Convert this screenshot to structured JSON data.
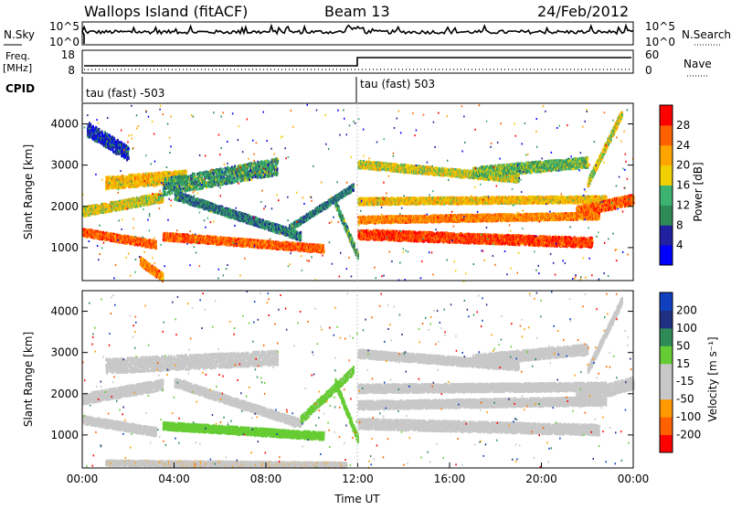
{
  "header": {
    "station": "Wallops Island (fitACF)",
    "beam": "Beam 13",
    "date": "24/Feb/2012"
  },
  "strip_panel": {
    "left_label": "N.Sky",
    "left_ticks": [
      "10^5",
      "10^0"
    ],
    "right_label": "N.Search",
    "right_ticks": [
      "10^5",
      "10^0"
    ]
  },
  "freq_panel": {
    "left_label_line1": "Freq.",
    "left_label_line2": "[MHz]",
    "left_ticks": [
      "18",
      "8"
    ],
    "right_label": "Nave",
    "right_ticks": [
      "60",
      "0"
    ]
  },
  "cpid": {
    "label": "CPID",
    "segments": [
      {
        "text": "tau (fast) -503",
        "start_hour": 0
      },
      {
        "text": "tau (fast) 503",
        "start_hour": 12
      }
    ]
  },
  "colors": {
    "power": [
      "#0000ff",
      "#2020a0",
      "#2e8b57",
      "#3cb371",
      "#f0d000",
      "#ffa500",
      "#ff6000",
      "#ff0000"
    ],
    "velocity": [
      "#ff0000",
      "#ff6000",
      "#ff9900",
      "#c8c8c8",
      "#c8c8c8",
      "#66cc33",
      "#2e8b57",
      "#203080",
      "#1040c0"
    ]
  },
  "chart_data": [
    {
      "type": "heatmap",
      "name": "power",
      "ylabel": "Slant Range [km]",
      "ylim": [
        200,
        4500
      ],
      "xlim": [
        0,
        24
      ],
      "yticks": [
        1000,
        2000,
        3000,
        4000
      ],
      "colorbar": {
        "label": "Power [dB]",
        "ticks": [
          4,
          8,
          12,
          16,
          20,
          24,
          28
        ],
        "range": [
          0,
          32
        ]
      },
      "bands": [
        {
          "t0": 0.0,
          "t1": 3.2,
          "r0": 1400,
          "r1": 1100,
          "w": 180,
          "value": 26
        },
        {
          "t0": 0.0,
          "t1": 3.5,
          "r0": 1900,
          "r1": 2250,
          "w": 220,
          "value": 18
        },
        {
          "t0": 1.0,
          "t1": 4.5,
          "r0": 2600,
          "r1": 2750,
          "w": 300,
          "value": 20
        },
        {
          "t0": 3.5,
          "t1": 8.5,
          "r0": 2500,
          "r1": 3000,
          "w": 400,
          "value": 12
        },
        {
          "t0": 3.5,
          "t1": 10.5,
          "r0": 1300,
          "r1": 1000,
          "w": 180,
          "value": 26
        },
        {
          "t0": 4.0,
          "t1": 9.5,
          "r0": 2300,
          "r1": 1300,
          "w": 200,
          "value": 10
        },
        {
          "t0": 2.5,
          "t1": 3.5,
          "r0": 700,
          "r1": 300,
          "w": 200,
          "value": 24
        },
        {
          "t0": 9.0,
          "t1": 11.8,
          "r0": 1500,
          "r1": 2500,
          "w": 150,
          "value": 10
        },
        {
          "t0": 11.0,
          "t1": 12.0,
          "r0": 2100,
          "r1": 800,
          "w": 180,
          "value": 12
        },
        {
          "t0": 12.0,
          "t1": 22.2,
          "r0": 1350,
          "r1": 1150,
          "w": 230,
          "value": 28
        },
        {
          "t0": 12.0,
          "t1": 22.5,
          "r0": 1700,
          "r1": 1800,
          "w": 160,
          "value": 24
        },
        {
          "t0": 12.0,
          "t1": 22.8,
          "r0": 2150,
          "r1": 2200,
          "w": 160,
          "value": 20
        },
        {
          "t0": 12.0,
          "t1": 19.0,
          "r0": 3050,
          "r1": 2700,
          "w": 180,
          "value": 18
        },
        {
          "t0": 17.0,
          "t1": 22.0,
          "r0": 2850,
          "r1": 3100,
          "w": 250,
          "value": 14
        },
        {
          "t0": 21.5,
          "t1": 24.0,
          "r0": 1900,
          "r1": 2200,
          "w": 250,
          "value": 26
        },
        {
          "t0": 22.0,
          "t1": 23.5,
          "r0": 2600,
          "r1": 4300,
          "w": 180,
          "value": 18
        },
        {
          "t0": 0.2,
          "t1": 2.0,
          "r0": 3900,
          "r1": 3300,
          "w": 350,
          "value": 6
        }
      ]
    },
    {
      "type": "heatmap",
      "name": "velocity",
      "ylabel": "Slant Range [km]",
      "xlabel": "Time UT",
      "ylim": [
        200,
        4500
      ],
      "xlim": [
        0,
        24
      ],
      "yticks": [
        1000,
        2000,
        3000,
        4000
      ],
      "xticks": [
        "00:00",
        "04:00",
        "08:00",
        "12:00",
        "16:00",
        "20:00",
        "00:00"
      ],
      "colorbar": {
        "label": "Velocity [m s⁻¹]",
        "ticks": [
          200,
          100,
          50,
          15,
          -15,
          -50,
          -100,
          -200
        ],
        "range": [
          -250,
          250
        ]
      },
      "bands": [
        {
          "t0": 0.0,
          "t1": 3.5,
          "r0": 1900,
          "r1": 2250,
          "w": 250,
          "value": 0
        },
        {
          "t0": 0.0,
          "t1": 3.2,
          "r0": 1400,
          "r1": 1100,
          "w": 200,
          "value": 0
        },
        {
          "t0": 1.0,
          "t1": 8.5,
          "r0": 2700,
          "r1": 2900,
          "w": 350,
          "value": 0
        },
        {
          "t0": 4.0,
          "t1": 9.5,
          "r0": 2300,
          "r1": 1300,
          "w": 200,
          "value": 0
        },
        {
          "t0": 3.5,
          "t1": 10.5,
          "r0": 1250,
          "r1": 1000,
          "w": 180,
          "value": 60
        },
        {
          "t0": 9.5,
          "t1": 11.8,
          "r0": 1400,
          "r1": 2600,
          "w": 180,
          "value": 40
        },
        {
          "t0": 11.0,
          "t1": 12.0,
          "r0": 2300,
          "r1": 900,
          "w": 180,
          "value": 50
        },
        {
          "t0": 12.0,
          "t1": 22.5,
          "r0": 1300,
          "r1": 1150,
          "w": 250,
          "value": 0
        },
        {
          "t0": 12.0,
          "t1": 22.8,
          "r0": 1750,
          "r1": 1850,
          "w": 200,
          "value": 0
        },
        {
          "t0": 12.0,
          "t1": 22.8,
          "r0": 2150,
          "r1": 2200,
          "w": 200,
          "value": 0
        },
        {
          "t0": 12.0,
          "t1": 19.0,
          "r0": 3000,
          "r1": 2700,
          "w": 200,
          "value": 0
        },
        {
          "t0": 17.0,
          "t1": 22.0,
          "r0": 2850,
          "r1": 3100,
          "w": 250,
          "value": 0
        },
        {
          "t0": 21.5,
          "t1": 24.0,
          "r0": 1900,
          "r1": 2300,
          "w": 300,
          "value": 0
        },
        {
          "t0": 22.0,
          "t1": 23.5,
          "r0": 2600,
          "r1": 4300,
          "w": 180,
          "value": 0
        },
        {
          "t0": 1.0,
          "t1": 11.5,
          "r0": 350,
          "r1": 300,
          "w": 120,
          "value": -70
        }
      ]
    }
  ]
}
